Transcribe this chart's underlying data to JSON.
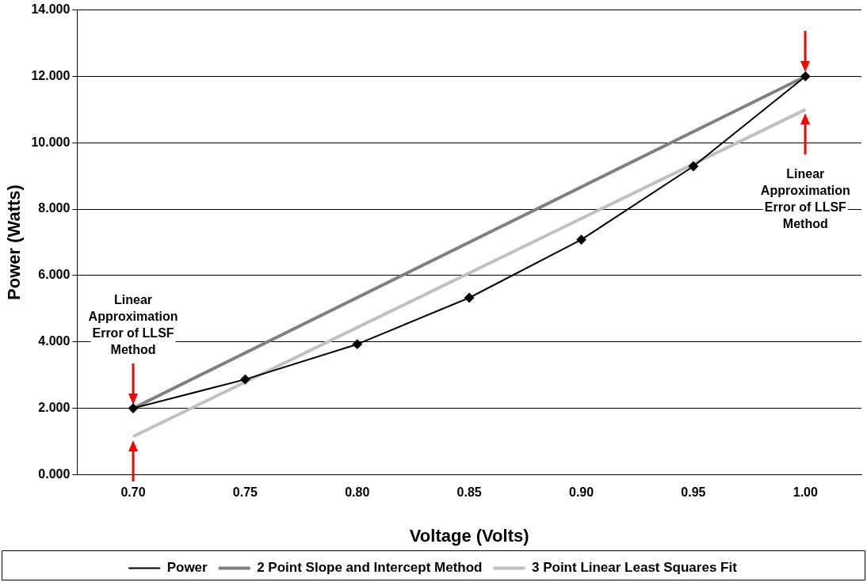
{
  "chart_data": {
    "type": "line",
    "xlabel": "Voltage (Volts)",
    "ylabel": "Power (Watts)",
    "categories": [
      "0.70",
      "0.75",
      "0.80",
      "0.85",
      "0.90",
      "0.95",
      "1.00"
    ],
    "series": [
      {
        "name": "Power",
        "color": "#000000",
        "marker": "diamond",
        "values": [
          2.0,
          2.87,
          3.93,
          5.33,
          7.08,
          9.29,
          12.0
        ]
      },
      {
        "name": "2 Point Slope and Intercept Method",
        "color": "#808080",
        "marker": "none",
        "values": [
          2.0,
          null,
          null,
          null,
          null,
          null,
          12.0
        ]
      },
      {
        "name": "3 Point Linear Least Squares Fit",
        "color": "#c0c0c0",
        "marker": "none",
        "values": [
          1.15,
          null,
          null,
          null,
          null,
          null,
          11.0
        ]
      }
    ],
    "ylim": [
      0,
      14
    ],
    "yticks": [
      {
        "value": 0,
        "label": "0.000"
      },
      {
        "value": 2,
        "label": "2.000"
      },
      {
        "value": 4,
        "label": "4.000"
      },
      {
        "value": 6,
        "label": "6.000"
      },
      {
        "value": 8,
        "label": "8.000"
      },
      {
        "value": 10,
        "label": "10.000"
      },
      {
        "value": 12,
        "label": "12.000"
      },
      {
        "value": 14,
        "label": "14.000"
      }
    ],
    "grid": "y",
    "legend": "bottom",
    "annotations": [
      "Linear Approximation Error of LLSF Method",
      "Linear Approximation Error of LLSF Method"
    ]
  }
}
